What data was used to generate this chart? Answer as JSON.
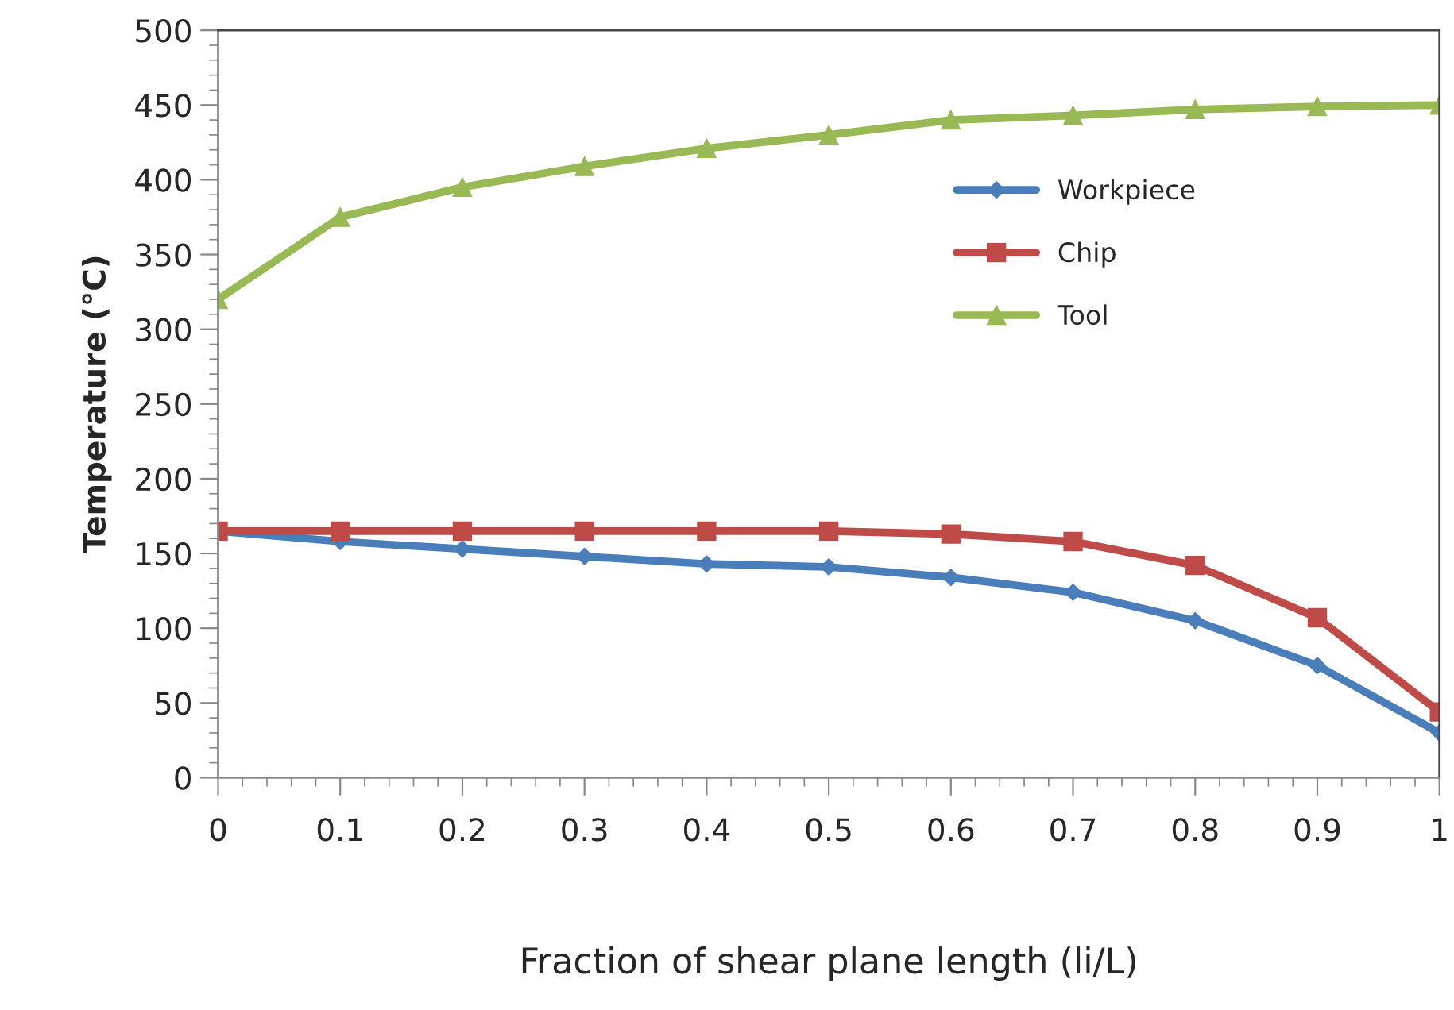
{
  "chart_data": {
    "type": "line",
    "xlabel": "Fraction of shear plane length (li/L)",
    "ylabel": "Temperature (°C)",
    "x": [
      0,
      0.1,
      0.2,
      0.3,
      0.4,
      0.5,
      0.6,
      0.7,
      0.8,
      0.9,
      1
    ],
    "series": [
      {
        "name": "Workpiece",
        "color": "#4a7ebb",
        "marker": "diamond",
        "values": [
          165,
          158,
          153,
          148,
          143,
          141,
          134,
          124,
          105,
          75,
          30
        ]
      },
      {
        "name": "Chip",
        "color": "#be4b48",
        "marker": "square",
        "values": [
          165,
          165,
          165,
          165,
          165,
          165,
          163,
          158,
          142,
          107,
          44
        ]
      },
      {
        "name": "Tool",
        "color": "#98b954",
        "marker": "triangle",
        "values": [
          320,
          375,
          395,
          409,
          421,
          430,
          440,
          443,
          447,
          449,
          450
        ]
      }
    ],
    "xlim": [
      0,
      1
    ],
    "xticks": [
      0,
      0.1,
      0.2,
      0.3,
      0.4,
      0.5,
      0.6,
      0.7,
      0.8,
      0.9,
      1
    ],
    "ylim": [
      0,
      500
    ],
    "yticks": [
      0,
      50,
      100,
      150,
      200,
      250,
      300,
      350,
      400,
      450,
      500
    ],
    "grid": false,
    "legend": "center right",
    "line_style": "solid"
  }
}
